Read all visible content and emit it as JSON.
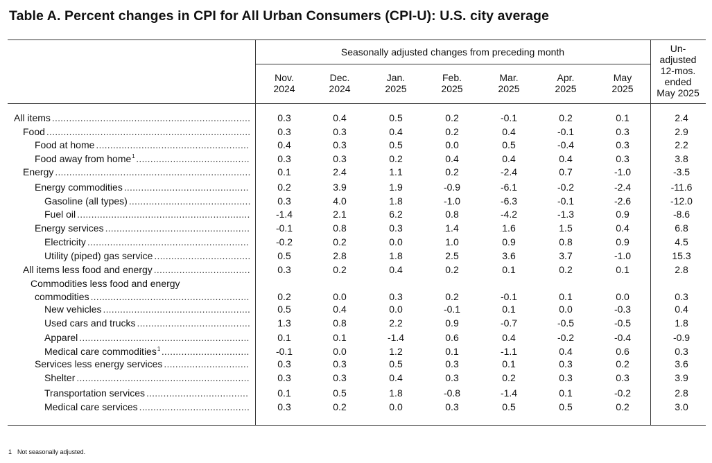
{
  "title": "Table A. Percent changes in CPI for All Urban Consumers (CPI-U): U.S. city average",
  "header": {
    "span_label": "Seasonally adjusted changes from preceding month",
    "months": [
      {
        "line1": "Nov.",
        "line2": "2024"
      },
      {
        "line1": "Dec.",
        "line2": "2024"
      },
      {
        "line1": "Jan.",
        "line2": "2025"
      },
      {
        "line1": "Feb.",
        "line2": "2025"
      },
      {
        "line1": "Mar.",
        "line2": "2025"
      },
      {
        "line1": "Apr.",
        "line2": "2025"
      },
      {
        "line1": "May",
        "line2": "2025"
      }
    ],
    "unadjusted": [
      "Un-",
      "adjusted",
      "12-mos.",
      "ended",
      "May 2025"
    ]
  },
  "rows": [
    {
      "label": "All items",
      "indent": 0,
      "values": [
        "0.3",
        "0.4",
        "0.5",
        "0.2",
        "-0.1",
        "0.2",
        "0.1",
        "2.4"
      ]
    },
    {
      "label": "Food",
      "indent": 1,
      "values": [
        "0.3",
        "0.3",
        "0.4",
        "0.2",
        "0.4",
        "-0.1",
        "0.3",
        "2.9"
      ]
    },
    {
      "label": "Food at home",
      "indent": 2,
      "values": [
        "0.4",
        "0.3",
        "0.5",
        "0.0",
        "0.5",
        "-0.4",
        "0.3",
        "2.2"
      ]
    },
    {
      "label": "Food away from home",
      "sup": "1",
      "indent": 2,
      "values": [
        "0.3",
        "0.3",
        "0.2",
        "0.4",
        "0.4",
        "0.4",
        "0.3",
        "3.8"
      ]
    },
    {
      "label": "Energy",
      "indent": 1,
      "values": [
        "0.1",
        "2.4",
        "1.1",
        "0.2",
        "-2.4",
        "0.7",
        "-1.0",
        "-3.5"
      ]
    },
    {
      "label": "Energy commodities",
      "indent": 2,
      "values": [
        "0.2",
        "3.9",
        "1.9",
        "-0.9",
        "-6.1",
        "-0.2",
        "-2.4",
        "-11.6"
      ]
    },
    {
      "label": "Gasoline (all types)",
      "indent": 3,
      "values": [
        "0.3",
        "4.0",
        "1.8",
        "-1.0",
        "-6.3",
        "-0.1",
        "-2.6",
        "-12.0"
      ]
    },
    {
      "label": "Fuel oil",
      "indent": 3,
      "values": [
        "-1.4",
        "2.1",
        "6.2",
        "0.8",
        "-4.2",
        "-1.3",
        "0.9",
        "-8.6"
      ]
    },
    {
      "label": "Energy services",
      "indent": 2,
      "values": [
        "-0.1",
        "0.8",
        "0.3",
        "1.4",
        "1.6",
        "1.5",
        "0.4",
        "6.8"
      ]
    },
    {
      "label": "Electricity",
      "indent": 3,
      "values": [
        "-0.2",
        "0.2",
        "0.0",
        "1.0",
        "0.9",
        "0.8",
        "0.9",
        "4.5"
      ]
    },
    {
      "label": "Utility (piped) gas service",
      "indent": 3,
      "values": [
        "0.5",
        "2.8",
        "1.8",
        "2.5",
        "3.6",
        "3.7",
        "-1.0",
        "15.3"
      ]
    },
    {
      "label": "All items less food and energy",
      "indent": 1,
      "values": [
        "0.3",
        "0.2",
        "0.4",
        "0.2",
        "0.1",
        "0.2",
        "0.1",
        "2.8"
      ]
    },
    {
      "label": "Commodities less food and energy",
      "label2": "commodities",
      "indent": 2,
      "values": [
        "0.2",
        "0.0",
        "0.3",
        "0.2",
        "-0.1",
        "0.1",
        "0.0",
        "0.3"
      ]
    },
    {
      "label": "New vehicles",
      "indent": 3,
      "values": [
        "0.5",
        "0.4",
        "0.0",
        "-0.1",
        "0.1",
        "0.0",
        "-0.3",
        "0.4"
      ]
    },
    {
      "label": "Used cars and trucks",
      "indent": 3,
      "values": [
        "1.3",
        "0.8",
        "2.2",
        "0.9",
        "-0.7",
        "-0.5",
        "-0.5",
        "1.8"
      ]
    },
    {
      "label": "Apparel",
      "indent": 3,
      "values": [
        "0.1",
        "0.1",
        "-1.4",
        "0.6",
        "0.4",
        "-0.2",
        "-0.4",
        "-0.9"
      ]
    },
    {
      "label": "Medical care commodities",
      "sup": "1",
      "indent": 3,
      "values": [
        "-0.1",
        "0.0",
        "1.2",
        "0.1",
        "-1.1",
        "0.4",
        "0.6",
        "0.3"
      ]
    },
    {
      "label": "Services less energy services",
      "indent": 2,
      "values": [
        "0.3",
        "0.3",
        "0.5",
        "0.3",
        "0.1",
        "0.3",
        "0.2",
        "3.6"
      ]
    },
    {
      "label": "Shelter",
      "indent": 3,
      "values": [
        "0.3",
        "0.3",
        "0.4",
        "0.3",
        "0.2",
        "0.3",
        "0.3",
        "3.9"
      ]
    },
    {
      "label": "Transportation services",
      "indent": 3,
      "values": [
        "0.1",
        "0.5",
        "1.8",
        "-0.8",
        "-1.4",
        "0.1",
        "-0.2",
        "2.8"
      ]
    },
    {
      "label": "Medical care services",
      "indent": 3,
      "values": [
        "0.3",
        "0.2",
        "0.0",
        "0.3",
        "0.5",
        "0.5",
        "0.2",
        "3.0"
      ]
    }
  ],
  "footnote": {
    "mark": "1",
    "text": "Not seasonally adjusted."
  }
}
